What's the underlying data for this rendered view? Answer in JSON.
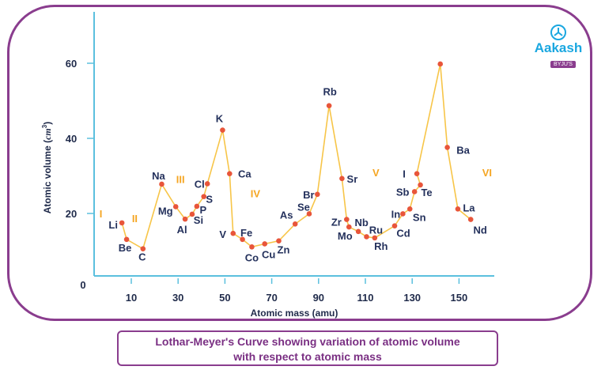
{
  "chart_data": {
    "type": "line",
    "xlabel": "Atomic mass (amu)",
    "ylabel": "Atomic volume (cm³)",
    "ylabel_main": "Atomic volume (",
    "ylabel_unit": "cm",
    "ylabel_sup": "3",
    "ylabel_end": ")",
    "x_ticks": [
      10,
      30,
      50,
      70,
      90,
      110,
      130,
      150
    ],
    "y_ticks": [
      0,
      20,
      40,
      60
    ],
    "xlim": [
      -7,
      163
    ],
    "ylim": [
      0,
      70
    ],
    "grid": false,
    "points": [
      {
        "label": "Li",
        "x": 6,
        "y": 17.5
      },
      {
        "label": "Be",
        "x": 8,
        "y": 13.1
      },
      {
        "label": "C",
        "x": 15,
        "y": 10.6
      },
      {
        "label": "Na",
        "x": 23,
        "y": 27.8
      },
      {
        "label": "Mg",
        "x": 29,
        "y": 21.8
      },
      {
        "label": "Al",
        "x": 33,
        "y": 18.5
      },
      {
        "label": "Si",
        "x": 36,
        "y": 19.8
      },
      {
        "label": "P",
        "x": 38,
        "y": 21.9
      },
      {
        "label": "S",
        "x": 41,
        "y": 24.5
      },
      {
        "label": "Cl",
        "x": 42.5,
        "y": 27.9
      },
      {
        "label": "K",
        "x": 49,
        "y": 42.2
      },
      {
        "label": "Ca",
        "x": 52,
        "y": 30.6
      },
      {
        "label": "V",
        "x": 53.5,
        "y": 14.7
      },
      {
        "label": "Fe",
        "x": 57.5,
        "y": 13.1
      },
      {
        "label": "Co",
        "x": 61.5,
        "y": 11.1
      },
      {
        "label": "Cu",
        "x": 67,
        "y": 11.9
      },
      {
        "label": "Zn",
        "x": 73,
        "y": 12.7
      },
      {
        "label": "As",
        "x": 80,
        "y": 17.2
      },
      {
        "label": "Se",
        "x": 86,
        "y": 19.9
      },
      {
        "label": "Br",
        "x": 89.5,
        "y": 25.1
      },
      {
        "label": "Rb",
        "x": 94.5,
        "y": 48.7
      },
      {
        "label": "Sr",
        "x": 100,
        "y": 29.3
      },
      {
        "label": "Zr",
        "x": 102,
        "y": 18.4
      },
      {
        "label": "Mo",
        "x": 103,
        "y": 16.4
      },
      {
        "label": "Nb",
        "x": 107,
        "y": 15.2
      },
      {
        "label": "Ru",
        "x": 110.5,
        "y": 13.8
      },
      {
        "label": "Rh",
        "x": 114,
        "y": 13.5
      },
      {
        "label": "Cd",
        "x": 122.5,
        "y": 16.7
      },
      {
        "label": "In",
        "x": 126,
        "y": 19.9
      },
      {
        "label": "Sn",
        "x": 129,
        "y": 21.2
      },
      {
        "label": "Sb",
        "x": 131,
        "y": 25.8
      },
      {
        "label": "Te",
        "x": 133.5,
        "y": 27.6
      },
      {
        "label": "I",
        "x": 132,
        "y": 30.6
      },
      {
        "label": "",
        "x": 142,
        "y": 59.8
      },
      {
        "label": "Ba",
        "x": 145,
        "y": 37.6
      },
      {
        "label": "La",
        "x": 149.5,
        "y": 21.2
      },
      {
        "label": "Nd",
        "x": 155,
        "y": 18.4
      }
    ],
    "annotations": [
      {
        "text": "I",
        "x": -3,
        "y": 20
      },
      {
        "text": "II",
        "x": 11.5,
        "y": 18.7
      },
      {
        "text": "III",
        "x": 31,
        "y": 29.2
      },
      {
        "text": "IV",
        "x": 63,
        "y": 25.4
      },
      {
        "text": "V",
        "x": 114.5,
        "y": 30.9
      },
      {
        "text": "VI",
        "x": 162,
        "y": 30.9
      }
    ],
    "colors": {
      "line": "#f7c548",
      "marker": "#e8553a",
      "axis": "#5bc0de",
      "roman": "#f5a623"
    }
  },
  "caption": {
    "line1": "Lothar-Meyer's Curve showing variation of atomic volume",
    "line2": "with respect to atomic mass"
  },
  "logo": {
    "main": "Aakash",
    "sub": "BYJU'S"
  }
}
